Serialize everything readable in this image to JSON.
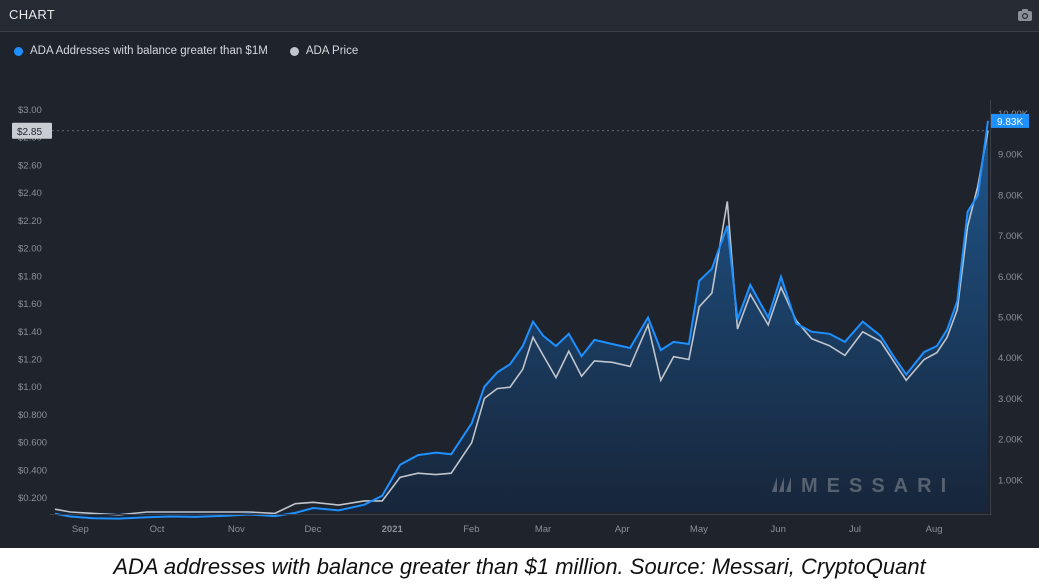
{
  "header": {
    "title": "CHART",
    "camera_icon": "camera-icon"
  },
  "caption": "ADA addresses with balance greater than $1 million. Source: Messari, CryptoQuant",
  "watermark": "MESSARI",
  "colors": {
    "addresses": "#1e90ff",
    "price": "#c0c4cc",
    "background": "#1f232c",
    "fill_top": "#1f5a94",
    "fill_bottom": "#16253a"
  },
  "chart_data": {
    "type": "area",
    "title": "",
    "x": [
      "2020-08-26",
      "2020-09-01",
      "2020-09-10",
      "2020-09-20",
      "2020-10-01",
      "2020-10-10",
      "2020-10-20",
      "2020-11-01",
      "2020-11-10",
      "2020-11-20",
      "2020-11-28",
      "2020-12-05",
      "2020-12-15",
      "2020-12-25",
      "2021-01-01",
      "2021-01-08",
      "2021-01-15",
      "2021-01-22",
      "2021-01-28",
      "2021-02-05",
      "2021-02-10",
      "2021-02-15",
      "2021-02-20",
      "2021-02-25",
      "2021-03-01",
      "2021-03-05",
      "2021-03-10",
      "2021-03-15",
      "2021-03-20",
      "2021-03-25",
      "2021-04-01",
      "2021-04-08",
      "2021-04-15",
      "2021-04-20",
      "2021-04-25",
      "2021-05-01",
      "2021-05-05",
      "2021-05-10",
      "2021-05-16",
      "2021-05-20",
      "2021-05-25",
      "2021-06-01",
      "2021-06-06",
      "2021-06-12",
      "2021-06-18",
      "2021-06-25",
      "2021-07-01",
      "2021-07-08",
      "2021-07-15",
      "2021-07-20",
      "2021-07-25",
      "2021-08-01",
      "2021-08-06",
      "2021-08-10",
      "2021-08-14",
      "2021-08-18",
      "2021-08-22",
      "2021-08-26"
    ],
    "x_tick_labels": [
      "Sep",
      "Oct",
      "Nov",
      "Dec",
      "2021",
      "Feb",
      "Mar",
      "Apr",
      "May",
      "Jun",
      "Jul",
      "Aug"
    ],
    "series": [
      {
        "name": "ADA Addresses with balance greater than $1M",
        "axis": "right",
        "values": [
          180,
          110,
          70,
          60,
          90,
          110,
          100,
          130,
          160,
          120,
          200,
          320,
          260,
          400,
          620,
          1380,
          1620,
          1680,
          1640,
          2400,
          3300,
          3650,
          3850,
          4300,
          4900,
          4550,
          4300,
          4600,
          4050,
          4450,
          4350,
          4250,
          5000,
          4200,
          4400,
          4350,
          5900,
          6200,
          7250,
          4950,
          5800,
          5000,
          6000,
          4850,
          4650,
          4600,
          4400,
          4900,
          4550,
          4050,
          3600,
          4150,
          4300,
          4700,
          5400,
          7600,
          8000,
          9830
        ]
      },
      {
        "name": "ADA Price",
        "axis": "left",
        "values": [
          0.12,
          0.1,
          0.09,
          0.08,
          0.1,
          0.1,
          0.1,
          0.1,
          0.1,
          0.09,
          0.16,
          0.17,
          0.15,
          0.18,
          0.18,
          0.35,
          0.38,
          0.37,
          0.38,
          0.6,
          0.92,
          0.99,
          1.0,
          1.13,
          1.36,
          1.23,
          1.07,
          1.26,
          1.08,
          1.19,
          1.18,
          1.15,
          1.45,
          1.05,
          1.22,
          1.2,
          1.58,
          1.68,
          2.34,
          1.42,
          1.67,
          1.45,
          1.72,
          1.48,
          1.35,
          1.3,
          1.23,
          1.4,
          1.33,
          1.19,
          1.05,
          1.2,
          1.25,
          1.36,
          1.56,
          2.16,
          2.45,
          2.85
        ]
      }
    ],
    "y_left": {
      "ticks": [
        "$0.200",
        "$0.400",
        "$0.600",
        "$0.800",
        "$1.00",
        "$1.20",
        "$1.40",
        "$1.60",
        "$1.80",
        "$2.00",
        "$2.20",
        "$2.40",
        "$2.60",
        "$2.80",
        "$3.00"
      ],
      "range": [
        0.1,
        3.0
      ]
    },
    "y_right": {
      "ticks": [
        "1.00K",
        "2.00K",
        "3.00K",
        "4.00K",
        "5.00K",
        "6.00K",
        "7.00K",
        "8.00K",
        "9.00K",
        "10.00K"
      ],
      "range": [
        0,
        10000
      ]
    },
    "current_price_label": "$2.85",
    "current_addresses_label": "9.83K",
    "legend": "top-left",
    "grid": false
  }
}
